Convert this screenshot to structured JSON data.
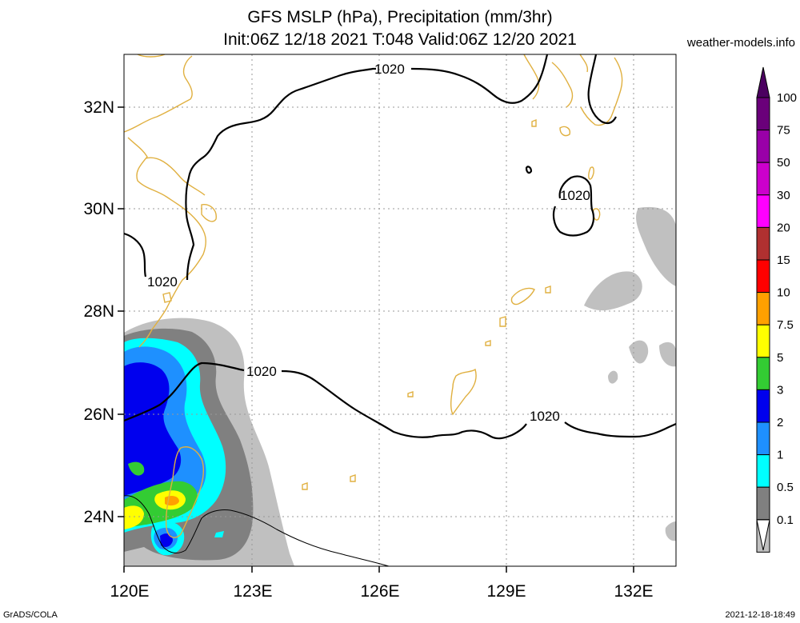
{
  "header": {
    "title_line1": "GFS MSLP (hPa), Precipitation (mm/3hr)",
    "title_line2": "Init:06Z 12/18 2021 T:048 Valid:06Z 12/20 2021",
    "site": "weather-models.info"
  },
  "footer": {
    "left": "GrADS/COLA",
    "right": "2021-12-18-18:49"
  },
  "map": {
    "lon_labels": [
      "120E",
      "123E",
      "126E",
      "129E",
      "132E"
    ],
    "lat_labels": [
      "32N",
      "30N",
      "28N",
      "26N",
      "24N"
    ],
    "isobar_label": "1020"
  },
  "legend": {
    "labels": [
      "100",
      "75",
      "50",
      "30",
      "20",
      "15",
      "10",
      "7.5",
      "5",
      "3",
      "2",
      "1",
      "0.5",
      "0.1"
    ],
    "colors": [
      "#6a007a",
      "#9900a8",
      "#cc00cc",
      "#ff00ff",
      "#b03030",
      "#ff0000",
      "#ffa000",
      "#ffff00",
      "#33cc33",
      "#0000ee",
      "#1e90ff",
      "#00ffff",
      "#808080",
      "#c0c0c0"
    ]
  },
  "colors": {
    "coast": "#e0b040",
    "isobar": "#000000",
    "grid": "#999999",
    "precip_light": "#c0c0c0",
    "precip_medium": "#808080"
  }
}
